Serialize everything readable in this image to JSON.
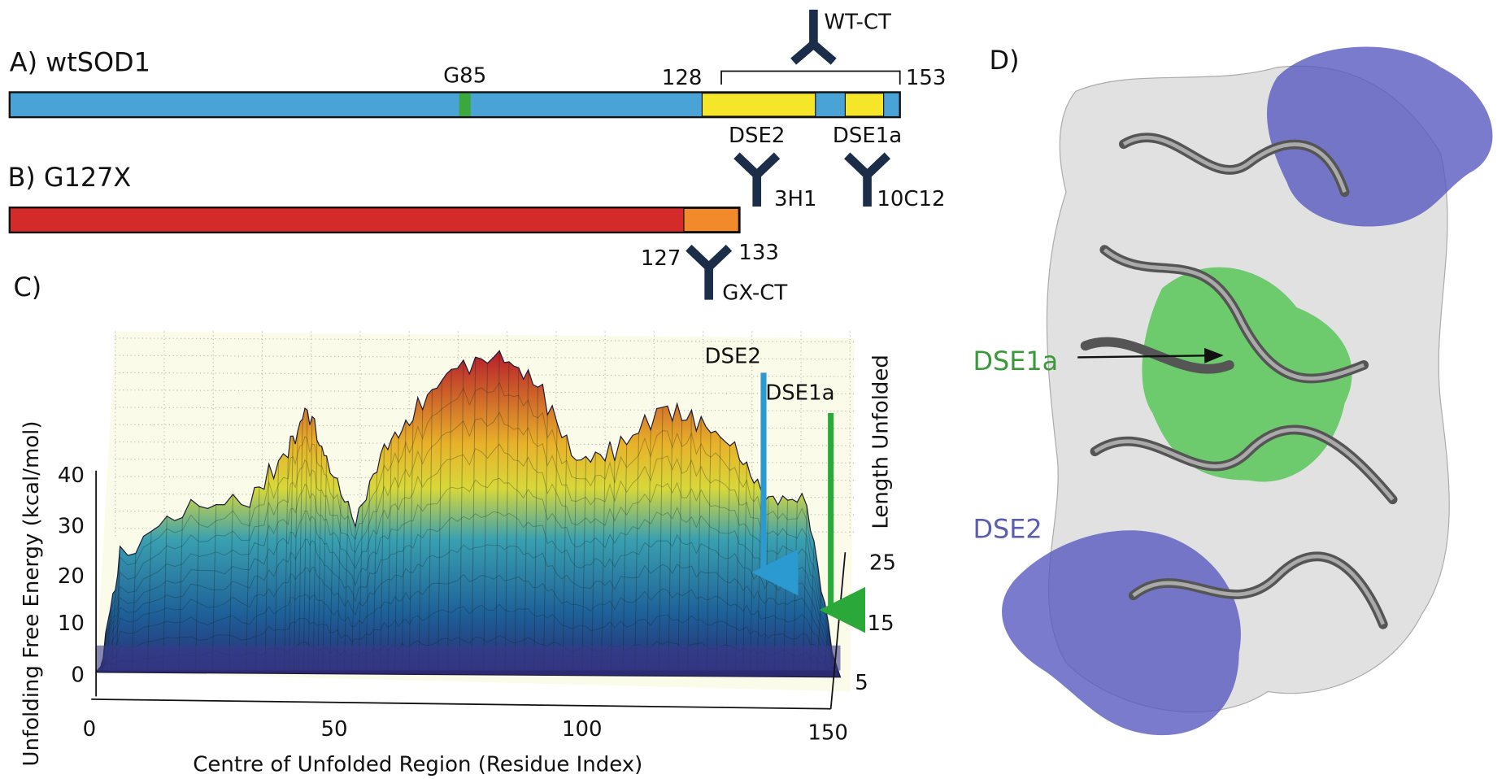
{
  "panel_a": {
    "label": "A) wtSOD1",
    "residue_labels": [
      "G85",
      128,
      153
    ],
    "antibody": "WT-CT",
    "epitopes": [
      "DSE2",
      "DSE1a"
    ]
  },
  "panel_b": {
    "label": "B) G127X",
    "antibodies": [
      "3H1",
      "10C12",
      "GX-CT"
    ],
    "residue_labels": [
      127,
      133
    ]
  },
  "panel_c": {
    "label": "C)",
    "y_title": "Unfolding Free Energy (kcal/mol)",
    "y_ticks": [
      0,
      10,
      20,
      30,
      40
    ],
    "x_title": "Centre of Unfolded Region (Residue Index)",
    "x_ticks": [
      0,
      50,
      100,
      150
    ],
    "z_title": "Length Unfolded",
    "z_ticks": [
      5,
      15,
      25
    ],
    "annotations": [
      "DSE2",
      "DSE1a"
    ]
  },
  "panel_d": {
    "label": "D)",
    "annotations": [
      "DSE1a",
      "DSE2"
    ]
  }
}
